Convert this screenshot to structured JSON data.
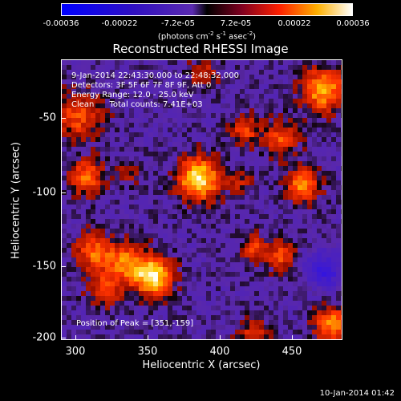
{
  "colorbar": {
    "ticks": [
      "-0.00036",
      "-0.00022",
      "-7.2e-05",
      "7.2e-05",
      "0.00022",
      "0.00036"
    ],
    "unit_prefix": "(photons cm",
    "unit_exp1": "-2",
    "unit_mid": " s",
    "unit_exp2": "-1",
    "unit_mid2": " asec",
    "unit_exp3": "-2",
    "unit_suffix": ")"
  },
  "chart_data": {
    "type": "heatmap",
    "title": "Reconstructed RHESSI Image",
    "xlabel": "Heliocentric X (arcsec)",
    "ylabel": "Heliocentric Y (arcsec)",
    "xlim": [
      288,
      482
    ],
    "ylim": [
      -202,
      -12
    ],
    "xticks": [
      "300",
      "350",
      "400",
      "450"
    ],
    "yticks": [
      "-50",
      "-100",
      "-150",
      "-200"
    ],
    "zlim": [
      -0.00036,
      0.00036
    ],
    "grid": false,
    "sources": [
      {
        "x": 383,
        "y": -93,
        "peak": 0.00034,
        "r": 10
      },
      {
        "x": 351,
        "y": -159,
        "peak": 0.00036,
        "r": 9
      },
      {
        "x": 332,
        "y": -150,
        "peak": 0.00022,
        "r": 9
      },
      {
        "x": 300,
        "y": -50,
        "peak": 0.00018,
        "r": 11
      },
      {
        "x": 310,
        "y": -143,
        "peak": 0.0002,
        "r": 9
      },
      {
        "x": 469,
        "y": -32,
        "peak": 0.00028,
        "r": 10
      },
      {
        "x": 415,
        "y": -60,
        "peak": 0.00016,
        "r": 7
      },
      {
        "x": 440,
        "y": -65,
        "peak": 0.00018,
        "r": 8
      },
      {
        "x": 455,
        "y": -97,
        "peak": 0.00024,
        "r": 8
      },
      {
        "x": 440,
        "y": -145,
        "peak": 0.00018,
        "r": 7
      },
      {
        "x": 421,
        "y": -140,
        "peak": 0.00016,
        "r": 6
      },
      {
        "x": 305,
        "y": -92,
        "peak": 0.00022,
        "r": 8
      },
      {
        "x": 318,
        "y": -168,
        "peak": 0.00016,
        "r": 8
      },
      {
        "x": 475,
        "y": -192,
        "peak": 0.00024,
        "r": 8
      },
      {
        "x": 422,
        "y": -200,
        "peak": 0.00014,
        "r": 8
      },
      {
        "x": 387,
        "y": -22,
        "peak": 0.00012,
        "r": 7
      },
      {
        "x": 335,
        "y": -88,
        "peak": 0.0001,
        "r": 6
      },
      {
        "x": 412,
        "y": -96,
        "peak": 0.0001,
        "r": 6
      },
      {
        "x": 470,
        "y": -155,
        "peak": -0.0002,
        "r": 8
      }
    ]
  },
  "annotations": {
    "time_range": "9-Jan-2014 22:43:30.000 to 22:48:32.000",
    "detectors": "Detectors: 3F 5F 6F 7F 8F 9F, Att 0",
    "energy": "Energy Range: 12.0 - 25.0 keV",
    "clean": "Clean      Total counts: 7.41E+03",
    "peak": "Position of Peak = [351,-159]"
  },
  "timestamp": "10-Jan-2014 01:42"
}
